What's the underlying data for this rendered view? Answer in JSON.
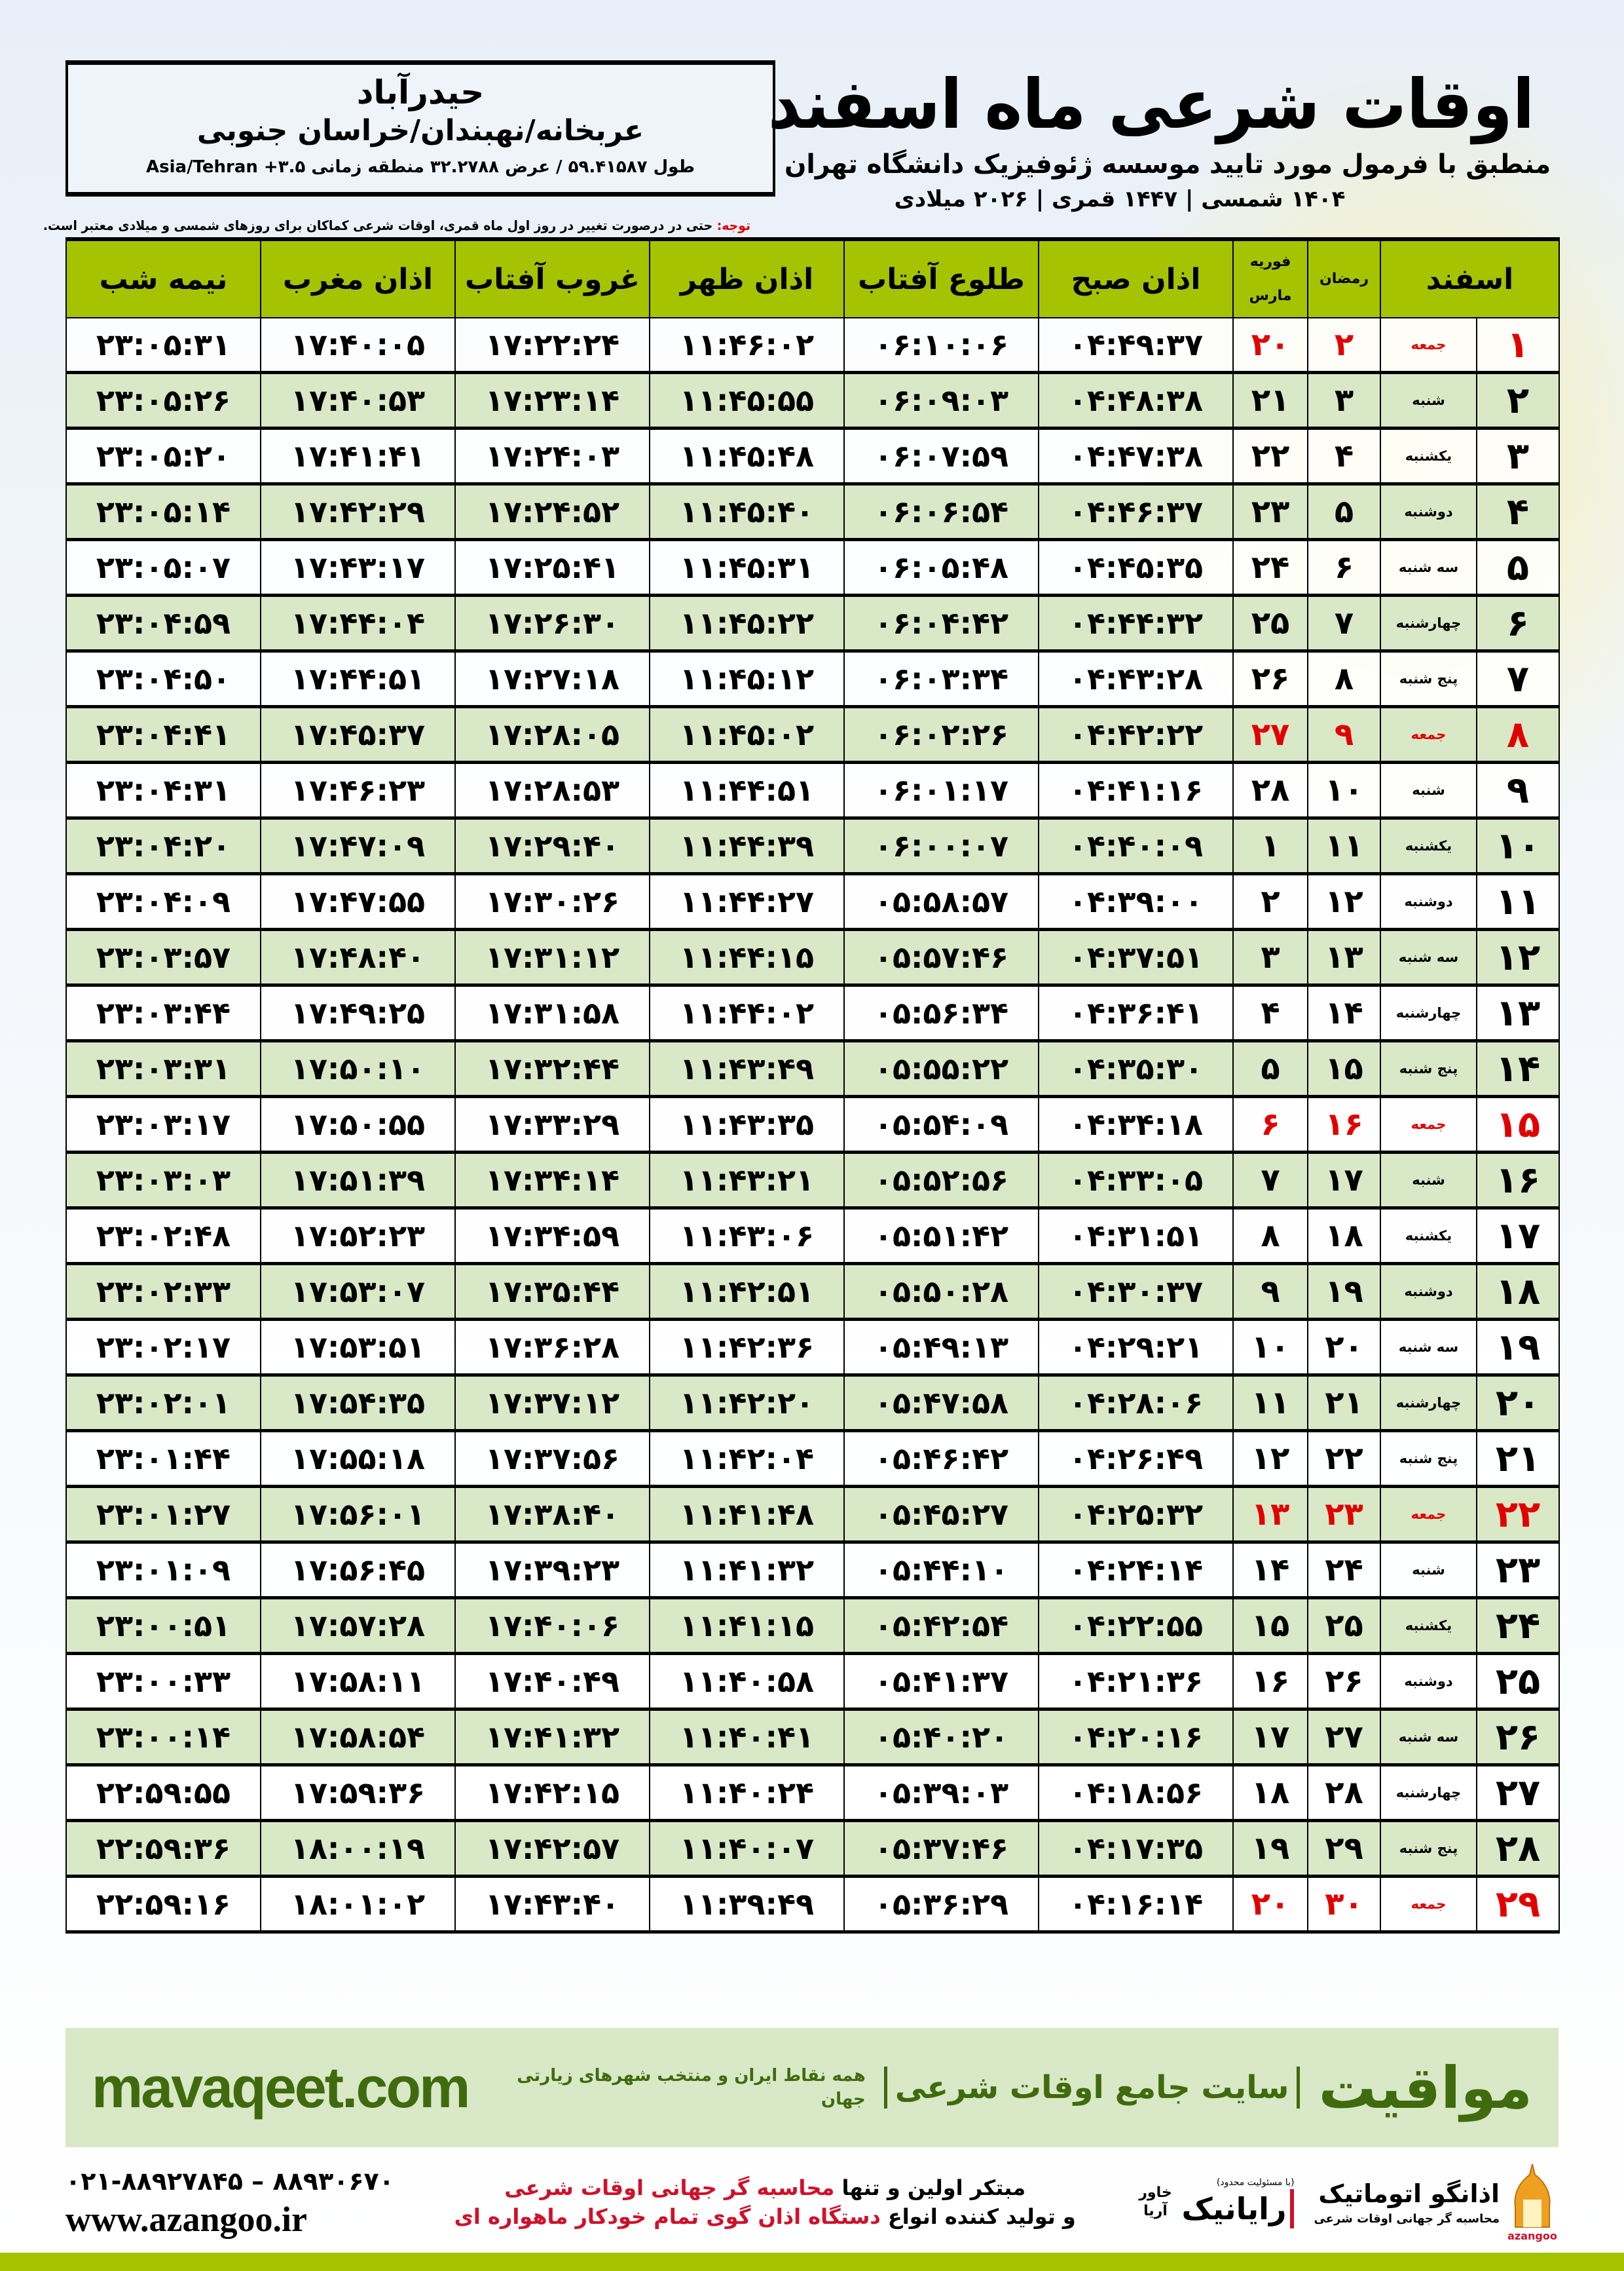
{
  "location": {
    "city": "حیدرآباد",
    "region": "عربخانه/نهبندان/خراسان جنوبی",
    "coords": "طول ۵۹.۴۱۵۸۷ / عرض ۳۲.۲۷۸۸ منطقه زمانی Asia/Tehran +۳.۵"
  },
  "header": {
    "title": "اوقات شرعی ماه اسفند",
    "subtitle": "منطبق با فرمول مورد تایید موسسه ژئوفیزیک دانشگاه تهران",
    "dates": "۱۴۰۴ شمسی | ۱۴۴۷ قمری | ۲۰۲۶ میلادی"
  },
  "note": {
    "label": "توجه:",
    "text": " حتی در درصورت تغییر در روز اول ماه قمری، اوقات شرعی کماکان برای روزهای شمسی و میلادی معتبر است."
  },
  "colors": {
    "header_green": "#a5c300",
    "row_green": "#d9e8c6",
    "friday_red": "#e00000",
    "brand_green": "#3f6b0e"
  },
  "table": {
    "columns": {
      "month": "اسفند",
      "ramadan": "رمضان",
      "gregorian_top": "فوریه",
      "gregorian_bottom": "مارس",
      "fajr": "اذان صبح",
      "sunrise": "طلوع آفتاب",
      "dhuhr": "اذان ظهر",
      "sunset": "غروب آفتاب",
      "maghrib": "اذان مغرب",
      "midnight": "نیمه شب"
    },
    "rows": [
      [
        "۱",
        "جمعه",
        "۲",
        "۲۰",
        "۰۴:۴۹:۳۷",
        "۰۶:۱۰:۰۶",
        "۱۱:۴۶:۰۲",
        "۱۷:۲۲:۲۴",
        "۱۷:۴۰:۰۵",
        "۲۳:۰۵:۳۱"
      ],
      [
        "۲",
        "شنبه",
        "۳",
        "۲۱",
        "۰۴:۴۸:۳۸",
        "۰۶:۰۹:۰۳",
        "۱۱:۴۵:۵۵",
        "۱۷:۲۳:۱۴",
        "۱۷:۴۰:۵۳",
        "۲۳:۰۵:۲۶"
      ],
      [
        "۳",
        "یکشنبه",
        "۴",
        "۲۲",
        "۰۴:۴۷:۳۸",
        "۰۶:۰۷:۵۹",
        "۱۱:۴۵:۴۸",
        "۱۷:۲۴:۰۳",
        "۱۷:۴۱:۴۱",
        "۲۳:۰۵:۲۰"
      ],
      [
        "۴",
        "دوشنبه",
        "۵",
        "۲۳",
        "۰۴:۴۶:۳۷",
        "۰۶:۰۶:۵۴",
        "۱۱:۴۵:۴۰",
        "۱۷:۲۴:۵۲",
        "۱۷:۴۲:۲۹",
        "۲۳:۰۵:۱۴"
      ],
      [
        "۵",
        "سه شنبه",
        "۶",
        "۲۴",
        "۰۴:۴۵:۳۵",
        "۰۶:۰۵:۴۸",
        "۱۱:۴۵:۳۱",
        "۱۷:۲۵:۴۱",
        "۱۷:۴۳:۱۷",
        "۲۳:۰۵:۰۷"
      ],
      [
        "۶",
        "چهارشنبه",
        "۷",
        "۲۵",
        "۰۴:۴۴:۳۲",
        "۰۶:۰۴:۴۲",
        "۱۱:۴۵:۲۲",
        "۱۷:۲۶:۳۰",
        "۱۷:۴۴:۰۴",
        "۲۳:۰۴:۵۹"
      ],
      [
        "۷",
        "پنج شنبه",
        "۸",
        "۲۶",
        "۰۴:۴۳:۲۸",
        "۰۶:۰۳:۳۴",
        "۱۱:۴۵:۱۲",
        "۱۷:۲۷:۱۸",
        "۱۷:۴۴:۵۱",
        "۲۳:۰۴:۵۰"
      ],
      [
        "۸",
        "جمعه",
        "۹",
        "۲۷",
        "۰۴:۴۲:۲۲",
        "۰۶:۰۲:۲۶",
        "۱۱:۴۵:۰۲",
        "۱۷:۲۸:۰۵",
        "۱۷:۴۵:۳۷",
        "۲۳:۰۴:۴۱"
      ],
      [
        "۹",
        "شنبه",
        "۱۰",
        "۲۸",
        "۰۴:۴۱:۱۶",
        "۰۶:۰۱:۱۷",
        "۱۱:۴۴:۵۱",
        "۱۷:۲۸:۵۳",
        "۱۷:۴۶:۲۳",
        "۲۳:۰۴:۳۱"
      ],
      [
        "۱۰",
        "یکشنبه",
        "۱۱",
        "۱",
        "۰۴:۴۰:۰۹",
        "۰۶:۰۰:۰۷",
        "۱۱:۴۴:۳۹",
        "۱۷:۲۹:۴۰",
        "۱۷:۴۷:۰۹",
        "۲۳:۰۴:۲۰"
      ],
      [
        "۱۱",
        "دوشنبه",
        "۱۲",
        "۲",
        "۰۴:۳۹:۰۰",
        "۰۵:۵۸:۵۷",
        "۱۱:۴۴:۲۷",
        "۱۷:۳۰:۲۶",
        "۱۷:۴۷:۵۵",
        "۲۳:۰۴:۰۹"
      ],
      [
        "۱۲",
        "سه شنبه",
        "۱۳",
        "۳",
        "۰۴:۳۷:۵۱",
        "۰۵:۵۷:۴۶",
        "۱۱:۴۴:۱۵",
        "۱۷:۳۱:۱۲",
        "۱۷:۴۸:۴۰",
        "۲۳:۰۳:۵۷"
      ],
      [
        "۱۳",
        "چهارشنبه",
        "۱۴",
        "۴",
        "۰۴:۳۶:۴۱",
        "۰۵:۵۶:۳۴",
        "۱۱:۴۴:۰۲",
        "۱۷:۳۱:۵۸",
        "۱۷:۴۹:۲۵",
        "۲۳:۰۳:۴۴"
      ],
      [
        "۱۴",
        "پنج شنبه",
        "۱۵",
        "۵",
        "۰۴:۳۵:۳۰",
        "۰۵:۵۵:۲۲",
        "۱۱:۴۳:۴۹",
        "۱۷:۳۲:۴۴",
        "۱۷:۵۰:۱۰",
        "۲۳:۰۳:۳۱"
      ],
      [
        "۱۵",
        "جمعه",
        "۱۶",
        "۶",
        "۰۴:۳۴:۱۸",
        "۰۵:۵۴:۰۹",
        "۱۱:۴۳:۳۵",
        "۱۷:۳۳:۲۹",
        "۱۷:۵۰:۵۵",
        "۲۳:۰۳:۱۷"
      ],
      [
        "۱۶",
        "شنبه",
        "۱۷",
        "۷",
        "۰۴:۳۳:۰۵",
        "۰۵:۵۲:۵۶",
        "۱۱:۴۳:۲۱",
        "۱۷:۳۴:۱۴",
        "۱۷:۵۱:۳۹",
        "۲۳:۰۳:۰۳"
      ],
      [
        "۱۷",
        "یکشنبه",
        "۱۸",
        "۸",
        "۰۴:۳۱:۵۱",
        "۰۵:۵۱:۴۲",
        "۱۱:۴۳:۰۶",
        "۱۷:۳۴:۵۹",
        "۱۷:۵۲:۲۳",
        "۲۳:۰۲:۴۸"
      ],
      [
        "۱۸",
        "دوشنبه",
        "۱۹",
        "۹",
        "۰۴:۳۰:۳۷",
        "۰۵:۵۰:۲۸",
        "۱۱:۴۲:۵۱",
        "۱۷:۳۵:۴۴",
        "۱۷:۵۳:۰۷",
        "۲۳:۰۲:۳۳"
      ],
      [
        "۱۹",
        "سه شنبه",
        "۲۰",
        "۱۰",
        "۰۴:۲۹:۲۱",
        "۰۵:۴۹:۱۳",
        "۱۱:۴۲:۳۶",
        "۱۷:۳۶:۲۸",
        "۱۷:۵۳:۵۱",
        "۲۳:۰۲:۱۷"
      ],
      [
        "۲۰",
        "چهارشنبه",
        "۲۱",
        "۱۱",
        "۰۴:۲۸:۰۶",
        "۰۵:۴۷:۵۸",
        "۱۱:۴۲:۲۰",
        "۱۷:۳۷:۱۲",
        "۱۷:۵۴:۳۵",
        "۲۳:۰۲:۰۱"
      ],
      [
        "۲۱",
        "پنج شنبه",
        "۲۲",
        "۱۲",
        "۰۴:۲۶:۴۹",
        "۰۵:۴۶:۴۲",
        "۱۱:۴۲:۰۴",
        "۱۷:۳۷:۵۶",
        "۱۷:۵۵:۱۸",
        "۲۳:۰۱:۴۴"
      ],
      [
        "۲۲",
        "جمعه",
        "۲۳",
        "۱۳",
        "۰۴:۲۵:۳۲",
        "۰۵:۴۵:۲۷",
        "۱۱:۴۱:۴۸",
        "۱۷:۳۸:۴۰",
        "۱۷:۵۶:۰۱",
        "۲۳:۰۱:۲۷"
      ],
      [
        "۲۳",
        "شنبه",
        "۲۴",
        "۱۴",
        "۰۴:۲۴:۱۴",
        "۰۵:۴۴:۱۰",
        "۱۱:۴۱:۳۲",
        "۱۷:۳۹:۲۳",
        "۱۷:۵۶:۴۵",
        "۲۳:۰۱:۰۹"
      ],
      [
        "۲۴",
        "یکشنبه",
        "۲۵",
        "۱۵",
        "۰۴:۲۲:۵۵",
        "۰۵:۴۲:۵۴",
        "۱۱:۴۱:۱۵",
        "۱۷:۴۰:۰۶",
        "۱۷:۵۷:۲۸",
        "۲۳:۰۰:۵۱"
      ],
      [
        "۲۵",
        "دوشنبه",
        "۲۶",
        "۱۶",
        "۰۴:۲۱:۳۶",
        "۰۵:۴۱:۳۷",
        "۱۱:۴۰:۵۸",
        "۱۷:۴۰:۴۹",
        "۱۷:۵۸:۱۱",
        "۲۳:۰۰:۳۳"
      ],
      [
        "۲۶",
        "سه شنبه",
        "۲۷",
        "۱۷",
        "۰۴:۲۰:۱۶",
        "۰۵:۴۰:۲۰",
        "۱۱:۴۰:۴۱",
        "۱۷:۴۱:۳۲",
        "۱۷:۵۸:۵۴",
        "۲۳:۰۰:۱۴"
      ],
      [
        "۲۷",
        "چهارشنبه",
        "۲۸",
        "۱۸",
        "۰۴:۱۸:۵۶",
        "۰۵:۳۹:۰۳",
        "۱۱:۴۰:۲۴",
        "۱۷:۴۲:۱۵",
        "۱۷:۵۹:۳۶",
        "۲۲:۵۹:۵۵"
      ],
      [
        "۲۸",
        "پنج شنبه",
        "۲۹",
        "۱۹",
        "۰۴:۱۷:۳۵",
        "۰۵:۳۷:۴۶",
        "۱۱:۴۰:۰۷",
        "۱۷:۴۲:۵۷",
        "۱۸:۰۰:۱۹",
        "۲۲:۵۹:۳۶"
      ],
      [
        "۲۹",
        "جمعه",
        "۳۰",
        "۲۰",
        "۰۴:۱۶:۱۴",
        "۰۵:۳۶:۲۹",
        "۱۱:۳۹:۴۹",
        "۱۷:۴۳:۴۰",
        "۱۸:۰۱:۰۲",
        "۲۲:۵۹:۱۶"
      ]
    ]
  },
  "footer": {
    "brand_name": "مواقیت",
    "brand_slogan": "سایت جامع اوقات شرعی",
    "brand_sub": "همه نقاط ایران و منتخب شهرهای زیارتی جهان",
    "brand_url": "mavaqeet.com",
    "promo_line1_a": "مبتکر اولین و تنها ",
    "promo_line1_b": "محاسبه گر جهانی اوقات شرعی",
    "promo_line2_a": "و تولید کننده انواع ",
    "promo_line2_b": "دستگاه اذان گوی تمام خودکار ماهواره ای",
    "phone": "۰۲۱-۸۸۹۲۷۸۴۵ – ۸۸۹۳۰۶۷۰",
    "website": "www.azangoo.ir",
    "rayanik_name": "رایانیک",
    "rayanik_sub": "خاور آریا",
    "rayanik_note": "(با مسئولیت محدود)",
    "azangoo_name": "اذانگو اتوماتیک",
    "azangoo_sub": "محاسبه گر جهانی اوقات شرعی",
    "azangoo_latin": "azangoo"
  }
}
